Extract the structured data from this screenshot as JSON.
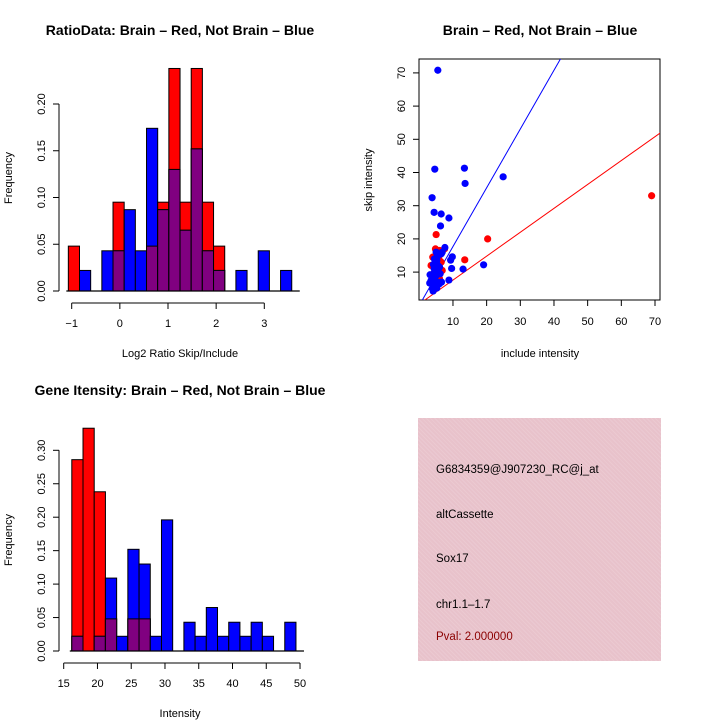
{
  "colors": {
    "brain": "#ff0000",
    "not_brain": "#0000ff",
    "overlap": "#800080",
    "pval_text": "#8b0000",
    "panel_bg": "#e8c2cb"
  },
  "chart_data": [
    {
      "id": "ratio-histogram",
      "type": "bar",
      "title": "RatioData: Brain – Red, Not Brain – Blue",
      "xlabel": "Log2 Ratio Skip/Include",
      "ylabel": "Frequency",
      "xlim": [
        -1.07,
        3.57
      ],
      "ylim": [
        0,
        0.24
      ],
      "xticks": [
        -1,
        0,
        1,
        2,
        3
      ],
      "xtick_labels": [
        "−1",
        "0",
        "1",
        "2",
        "3"
      ],
      "yticks": [
        0,
        0.05,
        0.1,
        0.15,
        0.2
      ],
      "ytick_labels": [
        "0.00",
        "0.05",
        "0.10",
        "0.15",
        "0.20"
      ],
      "bin_start": -1.07,
      "bin_width": 0.232,
      "series": [
        {
          "name": "Brain",
          "color": "red",
          "values": [
            0.048,
            0,
            0,
            0,
            0.095,
            0,
            0,
            0.048,
            0.095,
            0.238,
            0.095,
            0.238,
            0.095,
            0.048,
            0,
            0,
            0,
            0,
            0,
            0
          ]
        },
        {
          "name": "Not Brain",
          "color": "blue",
          "values": [
            0,
            0.022,
            0,
            0.043,
            0.043,
            0.087,
            0.043,
            0.174,
            0.087,
            0.13,
            0.065,
            0.152,
            0.043,
            0.022,
            0,
            0.022,
            0,
            0.043,
            0,
            0.022
          ]
        }
      ],
      "grid": false
    },
    {
      "id": "intensity-scatter",
      "type": "scatter",
      "title": "Brain – Red, Not Brain – Blue",
      "xlabel": "include intensity",
      "ylabel": "skip intensity",
      "xlim": [
        0,
        71.5
      ],
      "ylim": [
        1.5,
        74.5
      ],
      "xticks": [
        10,
        20,
        30,
        40,
        50,
        60,
        70
      ],
      "yticks": [
        10,
        20,
        30,
        40,
        50,
        60,
        70
      ],
      "series": [
        {
          "name": "Brain",
          "color": "red",
          "points": [
            [
              69,
              33
            ],
            [
              20.3,
              20
            ],
            [
              13.5,
              13.7
            ],
            [
              5,
              21.3
            ],
            [
              4.8,
              17
            ],
            [
              4,
              14.5
            ],
            [
              5.5,
              16
            ],
            [
              6.5,
              13
            ],
            [
              6.8,
              10.5
            ],
            [
              4.5,
              11.5
            ],
            [
              5.8,
              14
            ],
            [
              6,
              16.5
            ],
            [
              7.5,
              17
            ],
            [
              3.5,
              12
            ],
            [
              5,
              12.5
            ],
            [
              4.2,
              9.5
            ],
            [
              6.2,
              11
            ],
            [
              5.5,
              9
            ],
            [
              4.8,
              7.5
            ],
            [
              3.8,
              6.8
            ],
            [
              6,
              8
            ]
          ]
        },
        {
          "name": "Not Brain",
          "color": "blue",
          "points": [
            [
              5.5,
              70.8
            ],
            [
              4.6,
              41
            ],
            [
              13.4,
              41.3
            ],
            [
              13.6,
              36.7
            ],
            [
              24.9,
              38.7
            ],
            [
              3.8,
              32.4
            ],
            [
              4.4,
              28
            ],
            [
              6.5,
              27.5
            ],
            [
              8.8,
              26.3
            ],
            [
              6.3,
              23.9
            ],
            [
              7.6,
              17.4
            ],
            [
              9.3,
              13.6
            ],
            [
              9.8,
              14.6
            ],
            [
              9.6,
              11.1
            ],
            [
              13,
              10.9
            ],
            [
              19.1,
              12.2
            ],
            [
              8.8,
              7.6
            ],
            [
              5,
              16
            ],
            [
              5.8,
              15.2
            ],
            [
              6.5,
              15.5
            ],
            [
              4.5,
              14
            ],
            [
              5.2,
              13.5
            ],
            [
              4.2,
              12.3
            ],
            [
              5.5,
              12
            ],
            [
              6,
              11.5
            ],
            [
              3.2,
              9.2
            ],
            [
              4.5,
              9.8
            ],
            [
              5,
              9
            ],
            [
              6.2,
              9.5
            ],
            [
              3.5,
              7.5
            ],
            [
              4,
              8
            ],
            [
              5,
              7.2
            ],
            [
              5.8,
              6.8
            ],
            [
              6.6,
              7
            ],
            [
              3.1,
              6.7
            ],
            [
              4.2,
              6.2
            ],
            [
              5.3,
              6
            ],
            [
              6,
              6.5
            ],
            [
              3.9,
              5
            ],
            [
              4.1,
              4.3
            ],
            [
              5.2,
              5.2
            ],
            [
              4.8,
              10.5
            ],
            [
              5.6,
              10.8
            ],
            [
              4.4,
              11
            ],
            [
              6.8,
              16
            ],
            [
              5.3,
              14.6
            ]
          ]
        }
      ],
      "fit_lines": [
        {
          "name": "Not Brain fit",
          "color": "blue",
          "slope": 1.77,
          "intercept": 0
        },
        {
          "name": "Brain fit",
          "color": "red",
          "slope": 0.72,
          "intercept": 0.4
        }
      ],
      "grid": false
    },
    {
      "id": "gene-intensity-histogram",
      "type": "bar",
      "title": "Gene Itensity: Brain – Red, Not Brain – Blue",
      "xlabel": "Intensity",
      "ylabel": "Frequency",
      "xlim": [
        15,
        50
      ],
      "ylim": [
        0,
        0.333
      ],
      "xticks": [
        15,
        20,
        25,
        30,
        35,
        40,
        45,
        50
      ],
      "yticks": [
        0,
        0.05,
        0.1,
        0.15,
        0.2,
        0.25,
        0.3
      ],
      "ytick_labels": [
        "0.00",
        "0.05",
        "0.10",
        "0.15",
        "0.20",
        "0.25",
        "0.30"
      ],
      "bin_start": 16.2,
      "bin_width": 1.66,
      "series": [
        {
          "name": "Brain",
          "color": "red",
          "values": [
            0.286,
            0.333,
            0.238,
            0.048,
            0,
            0.048,
            0.048,
            0,
            0,
            0,
            0,
            0,
            0,
            0,
            0,
            0,
            0,
            0,
            0,
            0
          ]
        },
        {
          "name": "Not Brain",
          "color": "blue",
          "values": [
            0.022,
            0,
            0.022,
            0.109,
            0.022,
            0.152,
            0.13,
            0.022,
            0.196,
            0,
            0.043,
            0.022,
            0.065,
            0.022,
            0.043,
            0.022,
            0.043,
            0.022,
            0,
            0.043
          ]
        }
      ],
      "grid": false
    }
  ],
  "info_panel": {
    "probe_id": "G6834359@J907230_RC@j_at",
    "event_type": "altCassette",
    "gene": "Sox17",
    "location": "chr1.1–1.7",
    "pval": "Pval: 2.000000"
  }
}
